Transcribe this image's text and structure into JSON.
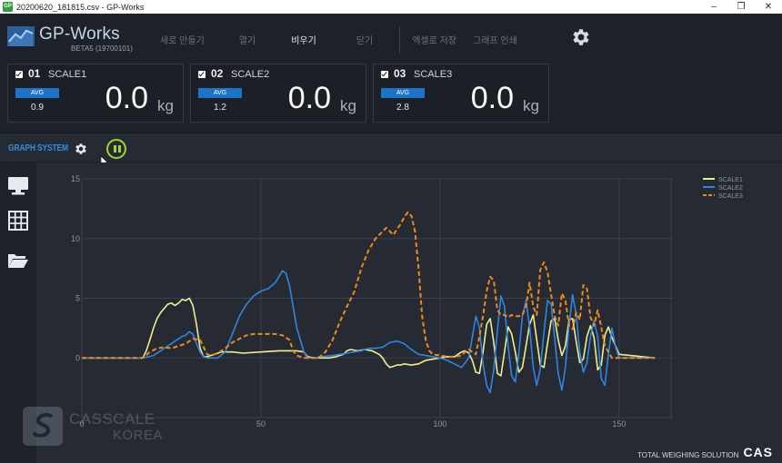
{
  "window": {
    "title": "20200620_181815.csv - GP-Works",
    "app_icon_text": "GP",
    "minimize": "–",
    "restore": "❐",
    "close": "✕"
  },
  "app": {
    "logo_text": "GP-Works",
    "version": "BETA5 (19700101)"
  },
  "menu": {
    "items": [
      {
        "label": "새로 만들기",
        "active": false
      },
      {
        "label": "열기",
        "active": false
      },
      {
        "label": "비우기",
        "active": true
      },
      {
        "label": "닫기",
        "active": false
      },
      {
        "label": "엑셀로 저장",
        "active": false
      },
      {
        "label": "그래프 인쇄",
        "active": false
      }
    ],
    "settings_icon": "gear-icon"
  },
  "scales": [
    {
      "num": "01",
      "name": "SCALE1",
      "avg_label": "AVG",
      "avg": "0.9",
      "value": "0.0",
      "unit": "kg"
    },
    {
      "num": "02",
      "name": "SCALE2",
      "avg_label": "AVG",
      "avg": "1.2",
      "value": "0.0",
      "unit": "kg"
    },
    {
      "num": "03",
      "name": "SCALE3",
      "avg_label": "AVG",
      "avg": "2.8",
      "value": "0.0",
      "unit": "kg"
    }
  ],
  "graph_bar": {
    "title": "GRAPH SYSTEM",
    "gear_icon": "gear-icon",
    "pause_icon": "pause-icon",
    "pause_color": "#9fd43a"
  },
  "sidebar": {
    "icons": [
      "monitor-icon",
      "table-icon",
      "folder-open-icon"
    ]
  },
  "colors": {
    "scale1": "#f2ee8f",
    "scale2": "#2f86e0",
    "scale3": "#f08a1c",
    "accent": "#1c74c8",
    "grid": "#3a404c"
  },
  "chart_data": {
    "type": "line",
    "xlim": [
      0,
      165
    ],
    "ylim": [
      -5,
      15
    ],
    "xticks": [
      "0",
      "50",
      "100",
      "150"
    ],
    "yticks": [
      "0",
      "5",
      "10",
      "15"
    ],
    "xtick_values": [
      0,
      50,
      100,
      150
    ],
    "ytick_values": [
      0,
      5,
      10,
      15
    ],
    "grid": true,
    "legend_position": "top-right",
    "series": [
      {
        "name": "SCALE1",
        "style": "solid",
        "color": "#f2ee8f",
        "x": [
          0,
          10,
          17,
          18,
          19,
          20,
          21,
          22,
          24,
          25,
          26,
          27,
          28,
          29,
          30,
          31,
          32,
          33,
          34,
          35,
          36,
          37,
          38,
          39,
          40,
          42,
          45,
          50,
          55,
          60,
          62,
          63,
          65,
          67,
          69,
          71,
          73,
          74,
          75,
          77,
          79,
          81,
          83,
          84,
          85,
          86,
          87,
          88,
          89,
          90,
          92,
          94,
          96,
          98,
          100,
          102,
          104,
          105,
          106,
          107,
          108,
          109,
          110,
          111,
          112,
          113,
          114,
          115,
          116,
          117,
          118,
          119,
          120,
          121,
          122,
          123,
          124,
          125,
          126,
          127,
          128,
          129,
          130,
          131,
          132,
          133,
          134,
          135,
          136,
          137,
          138,
          139,
          140,
          141,
          142,
          143,
          144,
          145,
          146,
          147,
          148,
          150,
          160
        ],
        "y": [
          0,
          0,
          0,
          0.6,
          1.5,
          2.5,
          3.3,
          3.8,
          4.5,
          4.6,
          4.4,
          4.6,
          4.9,
          4.8,
          5.0,
          4.4,
          2.8,
          0.8,
          0.1,
          0.1,
          0.2,
          0.3,
          0.4,
          0.5,
          0.5,
          0.5,
          0.4,
          0.5,
          0.6,
          0.6,
          0.5,
          0.1,
          0,
          0,
          0,
          0.1,
          0.3,
          0.6,
          0.7,
          0.6,
          0.7,
          0.6,
          0.3,
          0,
          -0.5,
          -0.8,
          -0.7,
          -0.6,
          -0.6,
          -0.5,
          -0.6,
          -0.5,
          -0.2,
          -0.1,
          0,
          0.1,
          0.1,
          0.3,
          0.5,
          0.6,
          0.4,
          -0.2,
          -1.2,
          -1.3,
          0.5,
          2.8,
          3.3,
          1.3,
          -1.3,
          -1.5,
          0.5,
          2.6,
          2.0,
          0.5,
          -1.2,
          -0.8,
          1.0,
          2.8,
          3.6,
          1.5,
          -0.6,
          -0.8,
          1.2,
          3.1,
          3.3,
          1.5,
          0.2,
          1.0,
          3.2,
          3.3,
          1.4,
          -0.4,
          -0.1,
          1.8,
          2.7,
          1.7,
          -1.0,
          -0.6,
          1.9,
          2.6,
          1.7,
          0.3,
          0
        ]
      },
      {
        "name": "SCALE2",
        "style": "solid",
        "color": "#2f86e0",
        "x": [
          0,
          10,
          17,
          20,
          22,
          24,
          26,
          28,
          29,
          30,
          31,
          32,
          33,
          34,
          35,
          36,
          37,
          38,
          40,
          42,
          44,
          46,
          48,
          50,
          52,
          54,
          55,
          56,
          57,
          58,
          60,
          62,
          63,
          65,
          67,
          70,
          72,
          74,
          76,
          78,
          80,
          82,
          84,
          86,
          88,
          90,
          92,
          94,
          96,
          98,
          100,
          102,
          104,
          106,
          108,
          110,
          111,
          112,
          113,
          114,
          115,
          116,
          117,
          118,
          119,
          120,
          121,
          122,
          123,
          124,
          125,
          126,
          127,
          128,
          129,
          130,
          131,
          132,
          133,
          134,
          135,
          136,
          137,
          138,
          139,
          140,
          141,
          142,
          143,
          144,
          145,
          146,
          147,
          148,
          149,
          150,
          160
        ],
        "y": [
          0,
          0,
          0,
          0.2,
          0.6,
          1.0,
          1.4,
          1.8,
          1.9,
          2.2,
          2.0,
          1.2,
          0.5,
          0.1,
          0,
          0,
          0,
          0,
          0.5,
          2.0,
          3.5,
          4.5,
          5.2,
          5.6,
          5.8,
          6.3,
          6.8,
          7.3,
          7.1,
          6.0,
          2.5,
          0.5,
          0,
          0,
          0.1,
          0.2,
          0.3,
          0.4,
          0.5,
          0.6,
          0.8,
          0.8,
          0.9,
          1.3,
          1.4,
          1.2,
          0.7,
          0.3,
          0.2,
          0.1,
          0,
          -0.2,
          -0.5,
          -0.8,
          0,
          3.5,
          2.5,
          -0.5,
          -2.3,
          -2.9,
          -1.0,
          2.3,
          5.2,
          4.3,
          1.0,
          -1.5,
          -2.0,
          0.4,
          3.5,
          4.8,
          2.6,
          -0.8,
          -2.3,
          -0.9,
          2.1,
          4.8,
          4.5,
          1.6,
          -1.3,
          -2.7,
          -0.8,
          2.7,
          5.3,
          3.7,
          0.5,
          -1.2,
          -0.4,
          1.8,
          3.1,
          1.8,
          -1.7,
          -2.3,
          0.3,
          2.5,
          0.9,
          0,
          0
        ]
      },
      {
        "name": "SCALE3",
        "style": "dashed",
        "color": "#f08a1c",
        "x": [
          0,
          10,
          17,
          19,
          21,
          23,
          25,
          27,
          29,
          31,
          33,
          34,
          35,
          36,
          38,
          40,
          42,
          44,
          46,
          48,
          50,
          52,
          54,
          56,
          58,
          59,
          60,
          62,
          64,
          66,
          68,
          70,
          72,
          74,
          76,
          78,
          80,
          82,
          84,
          85,
          86,
          87,
          88,
          89,
          90,
          91,
          92,
          93,
          94,
          95,
          96,
          97,
          98,
          100,
          102,
          104,
          106,
          107,
          108,
          109,
          110,
          111,
          112,
          113,
          114,
          115,
          116,
          117,
          118,
          119,
          120,
          121,
          122,
          123,
          124,
          125,
          126,
          127,
          128,
          129,
          130,
          131,
          132,
          133,
          134,
          135,
          136,
          137,
          138,
          139,
          140,
          141,
          142,
          143,
          144,
          145,
          146,
          147,
          148,
          149,
          150,
          160
        ],
        "y": [
          0,
          0,
          0,
          0.5,
          0.8,
          0.9,
          0.8,
          1.0,
          1.2,
          1.6,
          1.5,
          0.9,
          0.3,
          0.2,
          0.4,
          0.8,
          1.3,
          1.6,
          1.9,
          2.0,
          2.0,
          2.0,
          2.0,
          1.9,
          1.5,
          0.6,
          0.2,
          0,
          0,
          0,
          0.5,
          1.5,
          3.0,
          4.3,
          5.5,
          7.5,
          9.0,
          10.0,
          10.6,
          10.9,
          10.6,
          10.3,
          10.8,
          11.2,
          11.8,
          12.2,
          11.9,
          10.6,
          7.5,
          3.5,
          1.5,
          0.6,
          0.3,
          0.2,
          0.1,
          0.1,
          0.2,
          0.5,
          0.7,
          0.5,
          0.3,
          1.8,
          3.5,
          5.6,
          6.8,
          6.5,
          4.0,
          3.6,
          3.6,
          3.4,
          3.6,
          3.5,
          3.5,
          3.6,
          4.3,
          6.3,
          4.3,
          3.6,
          7.4,
          8.0,
          7.2,
          5.3,
          3.5,
          2.7,
          5.4,
          4.8,
          2.7,
          2.4,
          3.8,
          3.2,
          6.1,
          5.8,
          3.4,
          2.7,
          4.0,
          2.6,
          1.0,
          0.5,
          0,
          0,
          0,
          0
        ]
      }
    ]
  },
  "watermark": {
    "line1": "CASSCALE",
    "line2": "KOREA"
  },
  "footer": {
    "text": "TOTAL WEIGHING SOLUTION",
    "brand": "CAS"
  }
}
